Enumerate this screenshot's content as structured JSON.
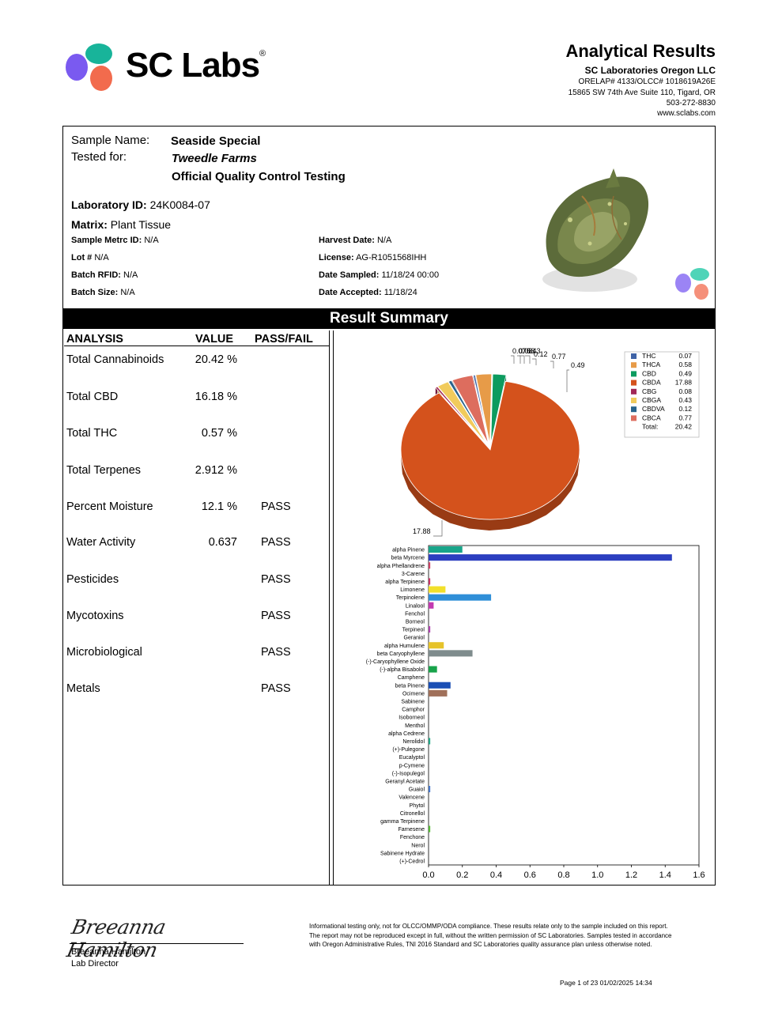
{
  "header": {
    "brand": "SC Labs",
    "doc_title": "Analytical Results",
    "lab_name": "SC Laboratories Oregon LLC",
    "lab_ids": "ORELAP# 4133/OLCC# 1018619A26E",
    "address": "15865 SW 74th Ave Suite 110, Tigard, OR",
    "phone": "503-272-8830",
    "website": "www.sclabs.com"
  },
  "sample": {
    "name_label": "Sample Name:",
    "name_value": "Seaside Special",
    "tested_for_label": "Tested for:",
    "tested_for_value": "Tweedle Farms",
    "testing_type": "Official Quality Control Testing",
    "lab_id_label": "Laboratory ID:",
    "lab_id_value": "24K0084-07",
    "matrix_label": "Matrix:",
    "matrix_value": "Plant Tissue",
    "metrc_label": "Sample Metrc ID:",
    "metrc_value": "N/A",
    "lot_label": "Lot #",
    "lot_value": "N/A",
    "rfid_label": "Batch RFID:",
    "rfid_value": "N/A",
    "batch_size_label": "Batch Size:",
    "batch_size_value": "N/A",
    "harvest_label": "Harvest Date:",
    "harvest_value": "N/A",
    "license_label": "License:",
    "license_value": "AG-R1051568IHH",
    "sampled_label": "Date Sampled:",
    "sampled_value": "11/18/24  00:00",
    "accepted_label": "Date Accepted:",
    "accepted_value": "11/18/24"
  },
  "summary": {
    "title": "Result Summary",
    "columns": [
      "ANALYSIS",
      "VALUE",
      "PASS/FAIL"
    ],
    "rows": [
      {
        "analysis": "Total Cannabinoids",
        "value": "20.42 %",
        "result": ""
      },
      {
        "analysis": "Total CBD",
        "value": "16.18 %",
        "result": ""
      },
      {
        "analysis": "Total THC",
        "value": "0.57 %",
        "result": ""
      },
      {
        "analysis": "Total Terpenes",
        "value": "2.912 %",
        "result": ""
      },
      {
        "analysis": "Percent Moisture",
        "value": "12.1 %",
        "result": "PASS"
      },
      {
        "analysis": "Water Activity",
        "value": "0.637",
        "result": "PASS"
      },
      {
        "analysis": "Pesticides",
        "value": "",
        "result": "PASS"
      },
      {
        "analysis": "Mycotoxins",
        "value": "",
        "result": "PASS"
      },
      {
        "analysis": "Microbiological",
        "value": "",
        "result": "PASS"
      },
      {
        "analysis": "Metals",
        "value": "",
        "result": "PASS"
      }
    ]
  },
  "chart_data": [
    {
      "type": "pie",
      "labels": [
        "THC",
        "THCA",
        "CBD",
        "CBDA",
        "CBG",
        "CBGA",
        "CBDVA",
        "CBCA"
      ],
      "values": [
        0.07,
        0.58,
        0.49,
        17.88,
        0.08,
        0.43,
        0.12,
        0.77
      ],
      "colors": [
        "#3f63a6",
        "#e79b48",
        "#0d9b5f",
        "#d4521c",
        "#a22856",
        "#f1cb5c",
        "#28638c",
        "#dd6d5e"
      ],
      "total_label": "Total:",
      "total": 20.42,
      "legend_position": "top-right"
    },
    {
      "type": "bar",
      "orientation": "horizontal",
      "categories": [
        "alpha Pinene",
        "beta Myrcene",
        "alpha Phellandrene",
        "3-Carene",
        "alpha Terpinene",
        "Limonene",
        "Terpinolene",
        "Linalool",
        "Fenchol",
        "Borneol",
        "Terpineol",
        "Geraniol",
        "alpha Humulene",
        "beta Caryophyllene",
        "(-)-Caryophyllene Oxide",
        "(-)-alpha Bisabolol",
        "Camphene",
        "beta Pinene",
        "Ocimene",
        "Sabinene",
        "Camphor",
        "Isoborneol",
        "Menthol",
        "alpha Cedrene",
        "Nerolidol",
        "(+)-Pulegone",
        "Eucalyptol",
        "p-Cymene",
        "(-)-Isopulegol",
        "Geranyl Acetate",
        "Guaiol",
        "Valencene",
        "Phytol",
        "Citronellol",
        "gamma Terpinene",
        "Farnesene",
        "Fenchone",
        "Nerol",
        "Sabinene Hydrate",
        "(+)-Cedrol"
      ],
      "values": [
        0.2,
        1.44,
        0.01,
        0.0,
        0.01,
        0.1,
        0.37,
        0.03,
        0.0,
        0.0,
        0.01,
        0.0,
        0.09,
        0.26,
        0.0,
        0.05,
        0.0,
        0.13,
        0.11,
        0.0,
        0.0,
        0.0,
        0.0,
        0.0,
        0.01,
        0.0,
        0.0,
        0.0,
        0.0,
        0.0,
        0.01,
        0.0,
        0.0,
        0.0,
        0.0,
        0.01,
        0.0,
        0.0,
        0.0,
        0.0
      ],
      "colors": [
        "#19a58a",
        "#2c3fc0",
        "#cc4466",
        "#999999",
        "#cc3366",
        "#f2e02a",
        "#2f8fd8",
        "#c23bb0",
        "#999999",
        "#999999",
        "#b040b0",
        "#999999",
        "#e6c32a",
        "#7f8c8d",
        "#999999",
        "#17a34a",
        "#999999",
        "#1a4fb5",
        "#a0705a",
        "#999999",
        "#999999",
        "#999999",
        "#999999",
        "#999999",
        "#22aa88",
        "#999999",
        "#999999",
        "#999999",
        "#999999",
        "#999999",
        "#4477cc",
        "#999999",
        "#999999",
        "#999999",
        "#999999",
        "#55bb33",
        "#999999",
        "#999999",
        "#999999",
        "#999999"
      ],
      "xticks": [
        "0.0",
        "0.2",
        "0.4",
        "0.6",
        "0.8",
        "1.0",
        "1.2",
        "1.4",
        "1.6"
      ],
      "xlim": [
        0,
        1.6
      ]
    }
  ],
  "signature": {
    "signer_name": "Breeanna Hamilton",
    "signer_title": "Lab Director",
    "signature_script": "Breeanna Hamilton"
  },
  "disclaimer": "Informational testing only, not for OLCC/OMMP/ODA compliance. These results relate only to the sample included on this report. The report may not be reproduced except in full, without the written permission of SC Laboratories. Samples tested in accordance with Oregon Administrative Rules, TNI 2016 Standard and SC Laboratories quality assurance plan unless otherwise noted.",
  "footer": {
    "page_info": "Page 1 of 23  01/02/2025 14:34"
  }
}
